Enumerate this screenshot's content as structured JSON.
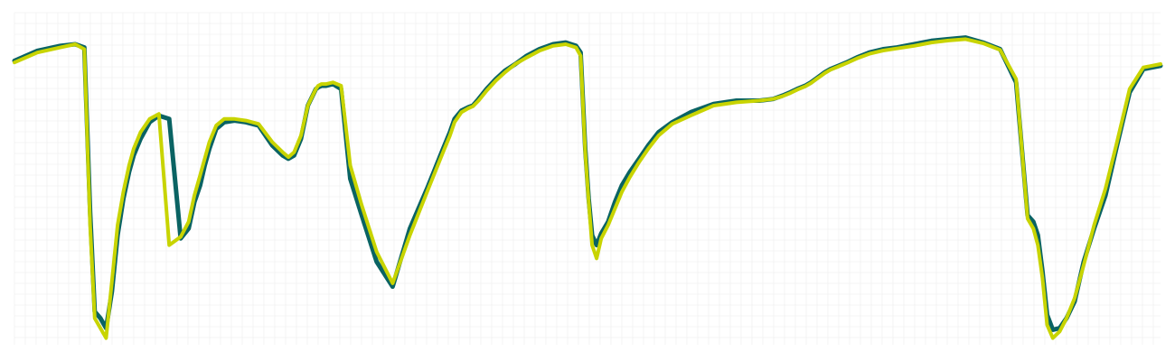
{
  "chart_data": {
    "type": "line",
    "title": "",
    "xlabel": "",
    "ylabel": "",
    "xlim": [
      0,
      1
    ],
    "ylim": [
      0,
      1
    ],
    "grid": true,
    "legend": "none",
    "x": [
      0.0,
      0.02,
      0.04,
      0.053,
      0.061,
      0.066,
      0.07,
      0.075,
      0.08,
      0.085,
      0.09,
      0.095,
      0.1,
      0.104,
      0.11,
      0.118,
      0.126,
      0.135,
      0.145,
      0.152,
      0.157,
      0.162,
      0.166,
      0.17,
      0.176,
      0.183,
      0.192,
      0.202,
      0.213,
      0.225,
      0.234,
      0.239,
      0.244,
      0.25,
      0.256,
      0.263,
      0.265,
      0.268,
      0.272,
      0.278,
      0.285,
      0.293,
      0.303,
      0.316,
      0.33,
      0.345,
      0.36,
      0.374,
      0.38,
      0.384,
      0.39,
      0.396,
      0.4,
      0.405,
      0.412,
      0.42,
      0.428,
      0.437,
      0.447,
      0.458,
      0.47,
      0.481,
      0.49,
      0.494,
      0.498,
      0.501,
      0.504,
      0.508,
      0.512,
      0.518,
      0.524,
      0.53,
      0.537,
      0.545,
      0.553,
      0.562,
      0.574,
      0.59,
      0.61,
      0.63,
      0.65,
      0.662,
      0.67,
      0.677,
      0.683,
      0.69,
      0.695,
      0.699,
      0.703,
      0.707,
      0.712,
      0.719,
      0.726,
      0.735,
      0.746,
      0.758,
      0.77,
      0.785,
      0.8,
      0.815,
      0.83,
      0.845,
      0.86,
      0.874,
      0.884,
      0.889,
      0.893,
      0.897,
      0.901,
      0.906,
      0.912,
      0.918,
      0.925,
      0.933,
      0.942,
      0.952,
      0.962,
      0.973,
      0.985,
      1.0
    ],
    "series": [
      {
        "color": "#0a6363",
        "values": [
          0.855,
          0.885,
          0.9,
          0.905,
          0.895,
          0.4,
          0.1,
          0.08,
          0.05,
          0.16,
          0.33,
          0.44,
          0.52,
          0.57,
          0.62,
          0.67,
          0.69,
          0.68,
          0.32,
          0.35,
          0.43,
          0.48,
          0.54,
          0.59,
          0.65,
          0.67,
          0.675,
          0.67,
          0.66,
          0.6,
          0.57,
          0.56,
          0.57,
          0.62,
          0.72,
          0.77,
          0.775,
          0.78,
          0.78,
          0.785,
          0.77,
          0.5,
          0.39,
          0.25,
          0.175,
          0.35,
          0.47,
          0.59,
          0.64,
          0.68,
          0.705,
          0.715,
          0.72,
          0.74,
          0.77,
          0.8,
          0.825,
          0.845,
          0.87,
          0.89,
          0.905,
          0.91,
          0.9,
          0.88,
          0.59,
          0.44,
          0.33,
          0.3,
          0.335,
          0.37,
          0.43,
          0.48,
          0.52,
          0.56,
          0.6,
          0.64,
          0.67,
          0.7,
          0.725,
          0.735,
          0.735,
          0.74,
          0.75,
          0.76,
          0.77,
          0.78,
          0.79,
          0.8,
          0.81,
          0.82,
          0.83,
          0.84,
          0.85,
          0.865,
          0.88,
          0.89,
          0.895,
          0.905,
          0.915,
          0.92,
          0.925,
          0.91,
          0.89,
          0.79,
          0.39,
          0.37,
          0.33,
          0.22,
          0.09,
          0.045,
          0.05,
          0.08,
          0.13,
          0.25,
          0.35,
          0.45,
          0.6,
          0.76,
          0.83,
          0.84
        ]
      },
      {
        "color": "#c8d400",
        "values": [
          0.85,
          0.88,
          0.895,
          0.905,
          0.89,
          0.36,
          0.08,
          0.05,
          0.02,
          0.19,
          0.36,
          0.46,
          0.54,
          0.59,
          0.64,
          0.68,
          0.695,
          0.3,
          0.325,
          0.37,
          0.45,
          0.51,
          0.56,
          0.61,
          0.66,
          0.68,
          0.68,
          0.675,
          0.665,
          0.61,
          0.58,
          0.565,
          0.58,
          0.63,
          0.72,
          0.77,
          0.78,
          0.785,
          0.785,
          0.79,
          0.78,
          0.54,
          0.42,
          0.28,
          0.185,
          0.33,
          0.46,
          0.58,
          0.63,
          0.67,
          0.7,
          0.712,
          0.718,
          0.735,
          0.765,
          0.795,
          0.82,
          0.845,
          0.865,
          0.885,
          0.9,
          0.905,
          0.895,
          0.87,
          0.58,
          0.43,
          0.3,
          0.26,
          0.32,
          0.36,
          0.41,
          0.46,
          0.505,
          0.55,
          0.59,
          0.63,
          0.665,
          0.69,
          0.72,
          0.73,
          0.735,
          0.74,
          0.748,
          0.758,
          0.768,
          0.778,
          0.788,
          0.798,
          0.808,
          0.818,
          0.828,
          0.838,
          0.848,
          0.862,
          0.876,
          0.886,
          0.892,
          0.9,
          0.91,
          0.916,
          0.92,
          0.908,
          0.888,
          0.8,
          0.38,
          0.35,
          0.3,
          0.2,
          0.06,
          0.02,
          0.04,
          0.08,
          0.14,
          0.24,
          0.36,
          0.47,
          0.61,
          0.77,
          0.835,
          0.845
        ]
      }
    ]
  }
}
